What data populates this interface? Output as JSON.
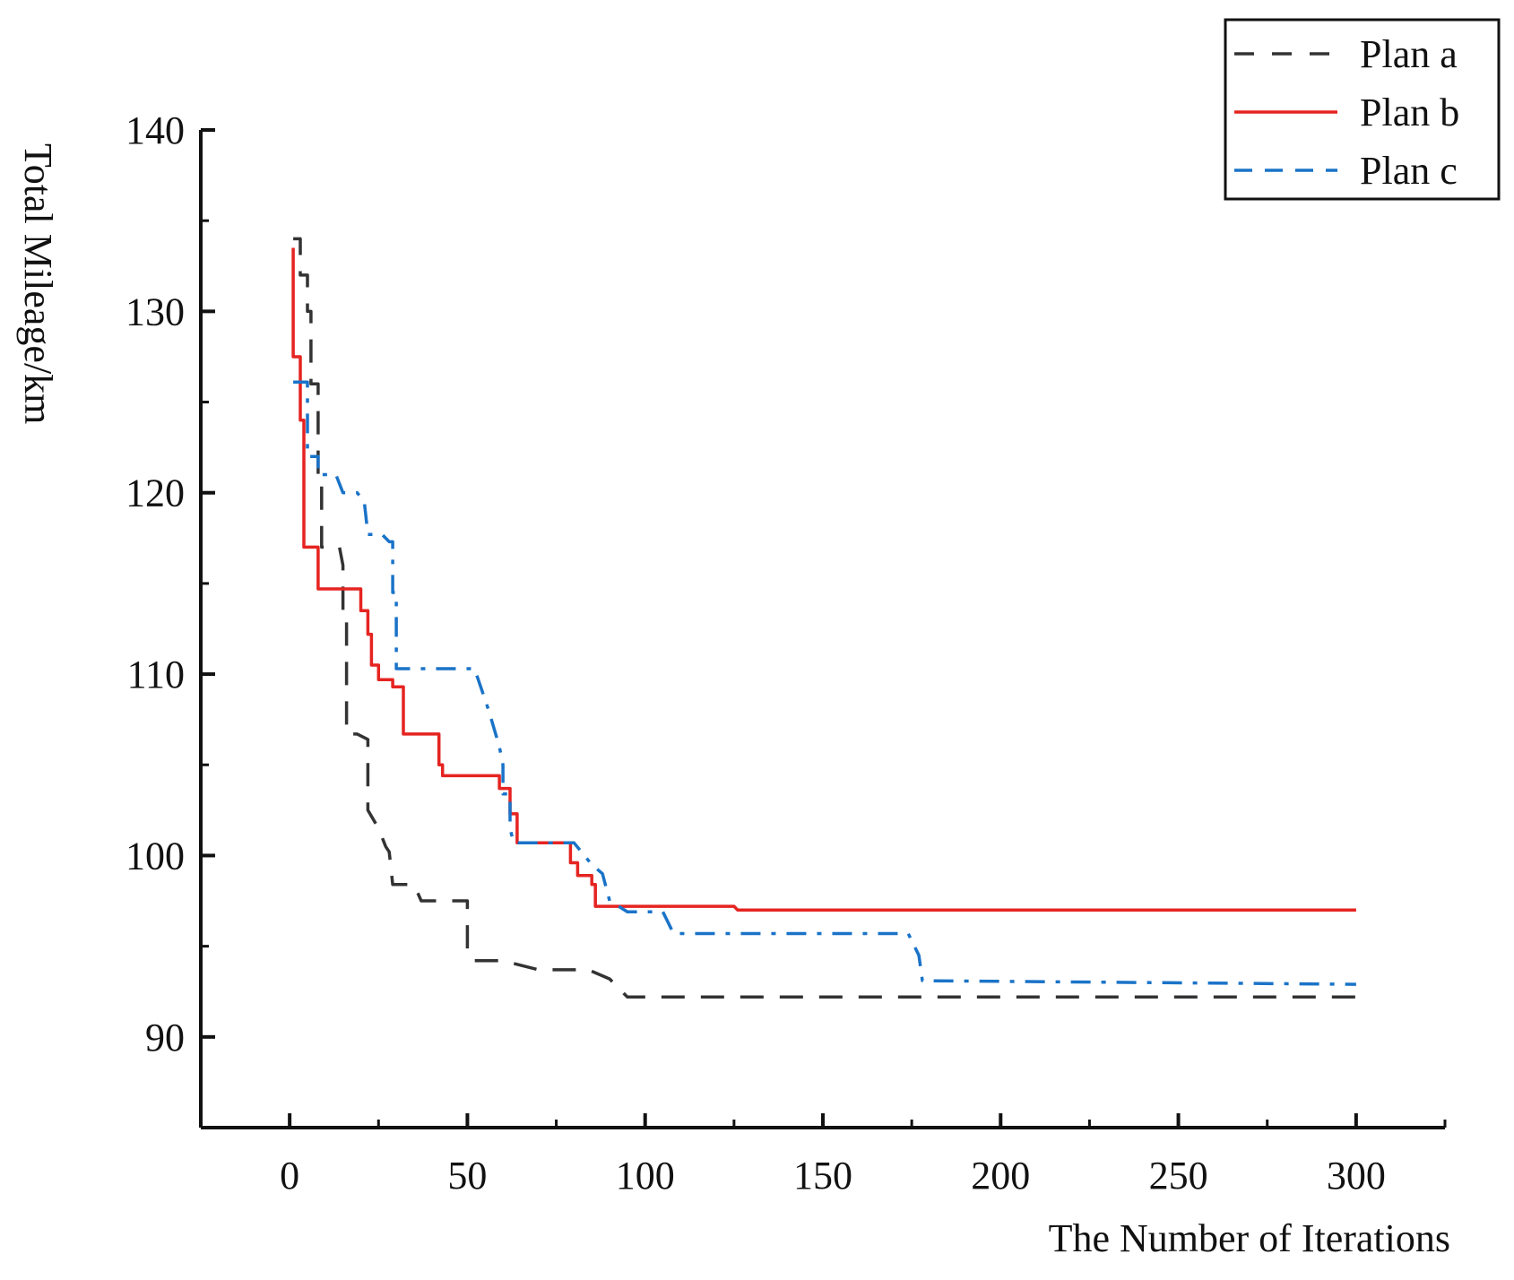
{
  "chart_data": {
    "type": "line",
    "title": "",
    "xlabel": "The Number of Iterations",
    "ylabel": "Total Mileage/km",
    "xlim": [
      -25,
      325
    ],
    "ylim": [
      85,
      140
    ],
    "xticks": [
      0,
      50,
      100,
      150,
      200,
      250,
      300
    ],
    "yticks": [
      90,
      100,
      110,
      120,
      130,
      140
    ],
    "xtick_labels": [
      "0",
      "50",
      "100",
      "150",
      "200",
      "250",
      "300"
    ],
    "ytick_labels": [
      "90",
      "100",
      "110",
      "120",
      "130",
      "140"
    ],
    "grid": false,
    "legend_position": "top-right",
    "series": [
      {
        "name": "Plan a",
        "color": "#333333",
        "dash": "dashed",
        "points": [
          [
            1,
            134
          ],
          [
            3,
            134
          ],
          [
            3,
            132
          ],
          [
            5,
            132
          ],
          [
            5,
            130
          ],
          [
            6,
            130
          ],
          [
            6,
            126
          ],
          [
            8,
            126
          ],
          [
            8,
            121
          ],
          [
            9,
            121
          ],
          [
            9,
            117
          ],
          [
            14,
            117
          ],
          [
            15,
            116
          ],
          [
            15,
            113
          ],
          [
            16,
            113
          ],
          [
            16,
            106.7
          ],
          [
            19,
            106.7
          ],
          [
            22,
            106.4
          ],
          [
            22,
            102.5
          ],
          [
            25,
            101.5
          ],
          [
            27,
            100.5
          ],
          [
            28,
            100.2
          ],
          [
            29,
            98.4
          ],
          [
            35,
            98.4
          ],
          [
            37,
            97.5
          ],
          [
            50,
            97.5
          ],
          [
            50,
            94.5
          ],
          [
            52,
            94.2
          ],
          [
            60,
            94.2
          ],
          [
            70,
            93.7
          ],
          [
            84,
            93.7
          ],
          [
            90,
            93.2
          ],
          [
            95,
            92.2
          ],
          [
            300,
            92.2
          ]
        ]
      },
      {
        "name": "Plan b",
        "color": "#e52421",
        "dash": "solid",
        "points": [
          [
            1,
            133.5
          ],
          [
            1,
            127.5
          ],
          [
            3,
            127.5
          ],
          [
            3,
            124
          ],
          [
            4,
            124
          ],
          [
            4,
            117
          ],
          [
            8,
            117
          ],
          [
            8,
            114.7
          ],
          [
            20,
            114.7
          ],
          [
            20,
            113.5
          ],
          [
            22,
            113.5
          ],
          [
            22,
            112.2
          ],
          [
            23,
            112.2
          ],
          [
            23,
            110.5
          ],
          [
            25,
            110.5
          ],
          [
            25,
            109.7
          ],
          [
            29,
            109.7
          ],
          [
            29,
            109.3
          ],
          [
            32,
            109.3
          ],
          [
            32,
            106.7
          ],
          [
            42,
            106.7
          ],
          [
            42,
            105
          ],
          [
            43,
            105
          ],
          [
            43,
            104.4
          ],
          [
            59,
            104.4
          ],
          [
            59,
            103.7
          ],
          [
            62,
            103.7
          ],
          [
            62,
            102.3
          ],
          [
            64,
            102.3
          ],
          [
            64,
            100.7
          ],
          [
            79,
            100.7
          ],
          [
            79,
            99.6
          ],
          [
            81,
            99.6
          ],
          [
            81,
            98.9
          ],
          [
            85,
            98.9
          ],
          [
            85,
            98.4
          ],
          [
            86,
            98.4
          ],
          [
            86,
            97.2
          ],
          [
            125,
            97.2
          ],
          [
            126,
            97
          ],
          [
            300,
            97
          ]
        ]
      },
      {
        "name": "Plan c",
        "color": "#1a73c8",
        "dash": "dashdot",
        "points": [
          [
            1,
            126.1
          ],
          [
            5,
            126.1
          ],
          [
            5,
            122
          ],
          [
            8,
            122
          ],
          [
            8,
            121
          ],
          [
            13,
            121
          ],
          [
            15,
            120
          ],
          [
            19,
            120
          ],
          [
            21,
            119.5
          ],
          [
            22,
            117.7
          ],
          [
            26,
            117.7
          ],
          [
            28,
            117.3
          ],
          [
            29,
            117.3
          ],
          [
            29,
            114.5
          ],
          [
            30,
            114.5
          ],
          [
            30,
            110.3
          ],
          [
            52,
            110.3
          ],
          [
            56,
            108
          ],
          [
            59,
            106
          ],
          [
            60,
            105
          ],
          [
            60,
            103.4
          ],
          [
            62,
            103.4
          ],
          [
            62,
            101.5
          ],
          [
            63,
            100.7
          ],
          [
            80,
            100.7
          ],
          [
            85,
            99.5
          ],
          [
            88,
            99
          ],
          [
            90,
            97.5
          ],
          [
            95,
            96.9
          ],
          [
            105,
            96.9
          ],
          [
            108,
            95.7
          ],
          [
            174,
            95.7
          ],
          [
            177,
            94.5
          ],
          [
            178,
            93.1
          ],
          [
            300,
            92.9
          ]
        ]
      }
    ]
  }
}
